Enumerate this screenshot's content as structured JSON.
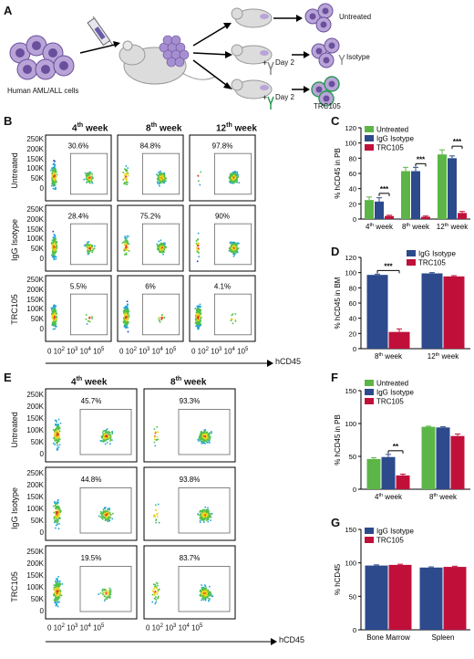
{
  "figure": {
    "panel_labels": [
      "A",
      "B",
      "C",
      "D",
      "E",
      "F",
      "G"
    ]
  },
  "panel_a": {
    "cells_label": "Human AML/ALL cells",
    "outcomes": [
      "Untreated",
      "Isotype",
      "TRC105"
    ],
    "day_labels": [
      "Day 2",
      "Day 2"
    ],
    "plus": "+"
  },
  "panel_b": {
    "columns": [
      {
        "base": "4",
        "sup": "th",
        "rest": " week"
      },
      {
        "base": "8",
        "sup": "th",
        "rest": " week"
      },
      {
        "base": "12",
        "sup": "th",
        "rest": " week"
      }
    ],
    "rows": [
      "Untreated",
      "IgG Isotype",
      "TRC105"
    ],
    "percentages": [
      [
        "30.6%",
        "84.8%",
        "97.8%"
      ],
      [
        "28.4%",
        "75.2%",
        "90%"
      ],
      [
        "5.5%",
        "6%",
        "4.1%"
      ]
    ],
    "y_ticks": [
      "250K",
      "200K",
      "150K",
      "100K",
      "50K",
      "0"
    ],
    "x_ticks": [
      "0",
      "10^2",
      "10^3",
      "10^4",
      "10^5"
    ],
    "x_axis_label": "hCD45"
  },
  "panel_e": {
    "columns": [
      {
        "base": "4",
        "sup": "th",
        "rest": " week"
      },
      {
        "base": "8",
        "sup": "th",
        "rest": " week"
      }
    ],
    "rows": [
      "Untreated",
      "IgG Isotype",
      "TRC105"
    ],
    "percentages": [
      [
        "45.7%",
        "93.3%"
      ],
      [
        "44.8%",
        "93.8%"
      ],
      [
        "19.5%",
        "83.7%"
      ]
    ],
    "y_ticks": [
      "250K",
      "200K",
      "150K",
      "100K",
      "50K",
      "0"
    ],
    "x_ticks": [
      "0",
      "10^2",
      "10^3",
      "10^4",
      "10^5"
    ],
    "x_axis_label": "hCD45"
  },
  "colors": {
    "untreated": "#5cb647",
    "isotype": "#2c4a8c",
    "trc105": "#c0103a"
  },
  "chart_data": [
    {
      "panel": "C",
      "type": "bar",
      "categories": [
        "4th week",
        "8th week",
        "12th week"
      ],
      "ylabel": "% hCD45 in PB",
      "ylim": [
        0,
        120
      ],
      "yticks": [
        0,
        20,
        40,
        60,
        80,
        100,
        120
      ],
      "legend": "top-left",
      "series": [
        {
          "name": "Untreated",
          "values": [
            25,
            63,
            85
          ],
          "errors": [
            4,
            5,
            6
          ]
        },
        {
          "name": "IgG Isotype",
          "values": [
            23,
            63,
            80
          ],
          "errors": [
            5,
            5,
            3
          ]
        },
        {
          "name": "TRC105",
          "values": [
            4,
            3,
            8
          ],
          "errors": [
            1,
            1,
            2
          ]
        }
      ],
      "significance": [
        "***",
        "***",
        "***"
      ]
    },
    {
      "panel": "D",
      "type": "bar",
      "categories": [
        "8th week",
        "12th week"
      ],
      "ylabel": "% hCD45 in BM",
      "ylim": [
        0,
        120
      ],
      "yticks": [
        0,
        20,
        40,
        60,
        80,
        100,
        120
      ],
      "legend": "top-right",
      "series": [
        {
          "name": "IgG Isotype",
          "values": [
            97,
            99
          ],
          "errors": [
            1,
            1
          ]
        },
        {
          "name": "TRC105",
          "values": [
            22,
            95
          ],
          "errors": [
            4,
            1
          ]
        }
      ],
      "significance": [
        "***",
        ""
      ]
    },
    {
      "panel": "F",
      "type": "bar",
      "categories": [
        "4th week",
        "8th week"
      ],
      "ylabel": "% hCD45 in PB",
      "ylim": [
        0,
        150
      ],
      "yticks": [
        0,
        50,
        100,
        150
      ],
      "legend": "top-left",
      "series": [
        {
          "name": "Untreated",
          "values": [
            46,
            95
          ],
          "errors": [
            2,
            1
          ]
        },
        {
          "name": "IgG Isotype",
          "values": [
            49,
            94
          ],
          "errors": [
            4,
            1
          ]
        },
        {
          "name": "TRC105",
          "values": [
            21,
            81
          ],
          "errors": [
            2,
            3
          ]
        }
      ],
      "significance": [
        "**",
        ""
      ]
    },
    {
      "panel": "G",
      "type": "bar",
      "categories": [
        "Bone Marrow",
        "Spleen"
      ],
      "ylabel": "% hCD45",
      "ylim": [
        0,
        150
      ],
      "yticks": [
        0,
        50,
        100,
        150
      ],
      "legend": "top-left",
      "series": [
        {
          "name": "IgG Isotype",
          "values": [
            96,
            93
          ],
          "errors": [
            1,
            1
          ]
        },
        {
          "name": "TRC105",
          "values": [
            97,
            94
          ],
          "errors": [
            1,
            1
          ]
        }
      ],
      "significance": [
        "",
        ""
      ]
    }
  ]
}
